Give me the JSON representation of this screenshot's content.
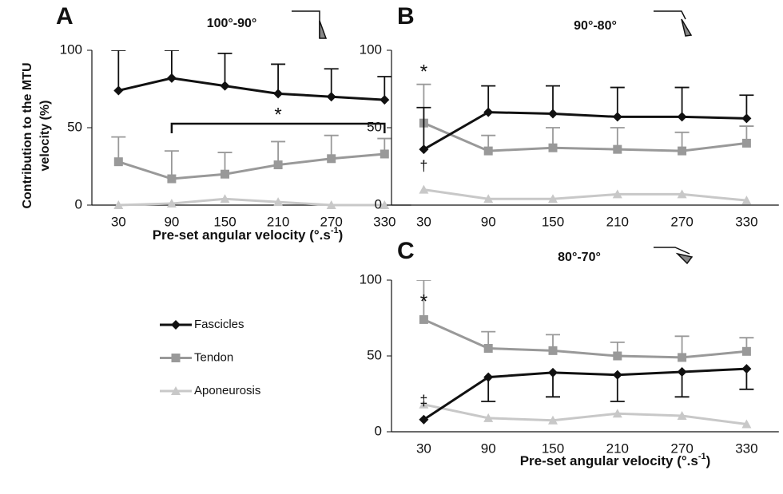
{
  "chart_data": [
    {
      "type": "line",
      "panel": "A",
      "title": "100°-90°",
      "y_label": [
        "Contribution to the MTU",
        "velocity (%)"
      ],
      "x_label": [
        "Pre-set angular velocity (°.s",
        "-1",
        ")"
      ],
      "categories": [
        30,
        90,
        150,
        210,
        270,
        330
      ],
      "ylim": [
        0,
        100
      ],
      "yticks": [
        0,
        50,
        100
      ],
      "series": [
        {
          "name": "Fascicles",
          "color": "#111111",
          "marker": "diamond",
          "values": [
            74,
            82,
            77,
            72,
            70,
            68
          ],
          "errors": [
            26,
            18,
            21,
            19,
            18,
            15
          ],
          "error_dir": "up"
        },
        {
          "name": "Tendon",
          "color": "#999999",
          "marker": "square",
          "values": [
            28,
            17,
            20,
            26,
            30,
            33
          ],
          "errors": [
            16,
            18,
            14,
            15,
            15,
            10
          ],
          "error_dir": "up"
        },
        {
          "name": "Aponeurosis",
          "color": "#c8c8c8",
          "marker": "triangle",
          "values": [
            0,
            1,
            4,
            2,
            0,
            0
          ]
        }
      ],
      "annotations": [
        {
          "text": "*",
          "color": "#111111"
        }
      ]
    },
    {
      "type": "line",
      "panel": "B",
      "title": "90°-80°",
      "categories": [
        30,
        90,
        150,
        210,
        270,
        330
      ],
      "ylim": [
        0,
        100
      ],
      "yticks": [
        0,
        50,
        100
      ],
      "series": [
        {
          "color": "#111111",
          "marker": "diamond",
          "values": [
            36,
            60,
            59,
            57,
            57,
            56
          ],
          "errors": [
            27,
            17,
            18,
            19,
            19,
            15
          ],
          "error_dir": "up"
        },
        {
          "color": "#999999",
          "marker": "square",
          "values": [
            53,
            35,
            37,
            36,
            35,
            40
          ],
          "errors": [
            25,
            10,
            13,
            14,
            12,
            11
          ],
          "error_dir": "up"
        },
        {
          "color": "#c8c8c8",
          "marker": "triangle",
          "values": [
            10,
            4,
            4,
            7,
            7,
            3
          ]
        }
      ],
      "annotations": [
        {
          "text": "*",
          "color": "#999999"
        },
        {
          "text": "†",
          "color": "#111111"
        }
      ]
    },
    {
      "type": "line",
      "panel": "C",
      "title": "80°-70°",
      "x_label": [
        "Pre-set angular velocity (°.s",
        "-1",
        ")"
      ],
      "categories": [
        30,
        90,
        150,
        210,
        270,
        330
      ],
      "ylim": [
        0,
        100
      ],
      "yticks": [
        0,
        50,
        100
      ],
      "series": [
        {
          "color": "#111111",
          "marker": "diamond",
          "values": [
            8,
            36,
            39,
            37.5,
            39.5,
            41.5
          ],
          "errors": [
            0,
            16,
            16,
            17.5,
            16.5,
            13.5
          ],
          "error_dir": "down"
        },
        {
          "color": "#999999",
          "marker": "square",
          "values": [
            74,
            55,
            53.5,
            50,
            49,
            53
          ],
          "errors": [
            26,
            11,
            10.5,
            9,
            14,
            9
          ],
          "error_dir": "up"
        },
        {
          "color": "#c8c8c8",
          "marker": "triangle",
          "values": [
            18,
            9,
            7.5,
            12,
            10.5,
            5
          ]
        }
      ],
      "annotations": [
        {
          "text": "*",
          "color": "#999999"
        },
        {
          "text": "‡",
          "color": "#111111"
        }
      ]
    }
  ]
}
